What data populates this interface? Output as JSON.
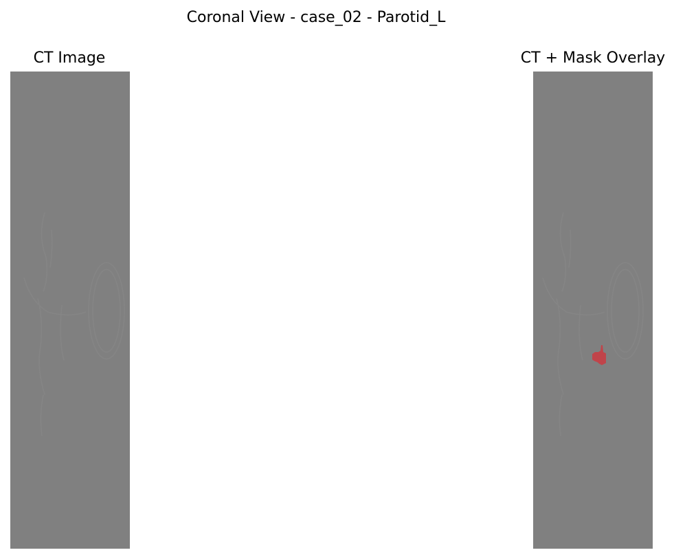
{
  "figure": {
    "title": "Coronal View - case_02 - Parotid_L"
  },
  "panels": [
    {
      "title": "CT Image",
      "background_color": "#808080",
      "outline_color": "#858585"
    },
    {
      "title": "CT + Mask Overlay",
      "background_color": "#808080",
      "outline_color": "#858585",
      "mask_color": "#c0444a"
    }
  ]
}
